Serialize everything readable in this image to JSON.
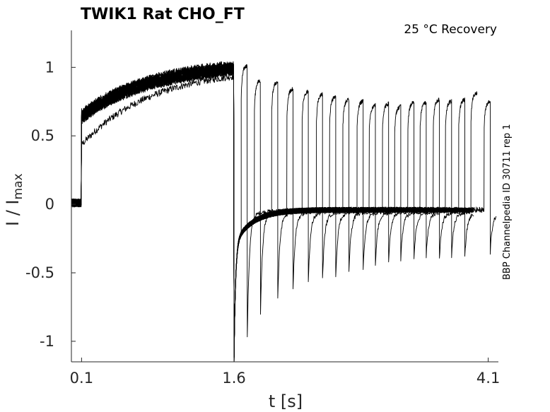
{
  "chart_data": {
    "type": "line",
    "title": "TWIK1  Rat  CHO_FT",
    "annotation": "25 °C  Recovery",
    "side_label": "BBP Channelpedia ID 30711 rep 1",
    "xlabel": "t [s]",
    "ylabel": "I / I",
    "ylabel_sub": "max",
    "xlim": [
      0.0,
      4.2
    ],
    "ylim": [
      -1.15,
      1.27
    ],
    "xticks": [
      0.1,
      1.6,
      4.1
    ],
    "xtick_labels": [
      "0.1",
      "1.6",
      "4.1"
    ],
    "yticks": [
      1,
      0.5,
      0,
      -0.5,
      -1
    ],
    "ytick_labels": [
      "1",
      "0.5",
      "0",
      "-0.5",
      "-1"
    ],
    "grid": false,
    "line_color": "#000000",
    "conditioning_pulse": {
      "start": 0.1,
      "end": 1.6,
      "initial_level": 0.62,
      "final_level": 0.97
    },
    "slow_sweep": {
      "initial_level": 0.45,
      "final_level": 0.95
    },
    "tail_baseline": -0.04,
    "test_pulses": [
      {
        "t_on": 1.67,
        "peak": 1.03,
        "tail_min": -0.93
      },
      {
        "t_on": 1.8,
        "peak": 0.92,
        "tail_min": -0.75
      },
      {
        "t_on": 1.97,
        "peak": 0.91,
        "tail_min": -0.64
      },
      {
        "t_on": 2.12,
        "peak": 0.86,
        "tail_min": -0.58
      },
      {
        "t_on": 2.27,
        "peak": 0.84,
        "tail_min": -0.52
      },
      {
        "t_on": 2.41,
        "peak": 0.82,
        "tail_min": -0.5
      },
      {
        "t_on": 2.54,
        "peak": 0.8,
        "tail_min": -0.49
      },
      {
        "t_on": 2.67,
        "peak": 0.78,
        "tail_min": -0.44
      },
      {
        "t_on": 2.81,
        "peak": 0.77,
        "tail_min": -0.43
      },
      {
        "t_on": 2.93,
        "peak": 0.74,
        "tail_min": -0.4
      },
      {
        "t_on": 3.06,
        "peak": 0.75,
        "tail_min": -0.37
      },
      {
        "t_on": 3.18,
        "peak": 0.73,
        "tail_min": -0.35
      },
      {
        "t_on": 3.31,
        "peak": 0.76,
        "tail_min": -0.34
      },
      {
        "t_on": 3.43,
        "peak": 0.76,
        "tail_min": -0.33
      },
      {
        "t_on": 3.56,
        "peak": 0.78,
        "tail_min": -0.35
      },
      {
        "t_on": 3.68,
        "peak": 0.77,
        "tail_min": -0.33
      },
      {
        "t_on": 3.81,
        "peak": 0.78,
        "tail_min": -0.34
      },
      {
        "t_on": 3.93,
        "peak": 0.83,
        "tail_min": -0.3
      },
      {
        "t_on": 4.06,
        "peak": 0.77,
        "tail_min": -0.3
      }
    ]
  }
}
